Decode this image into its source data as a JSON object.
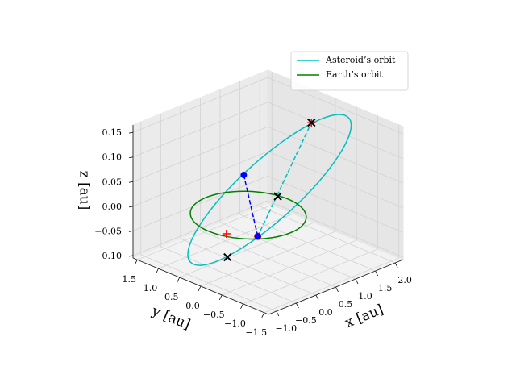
{
  "chart_data": {
    "type": "line3d",
    "xlabel": "x [au]",
    "ylabel": "y [au]",
    "zlabel": "z [au]",
    "xlim": [
      -1.2,
      2.2
    ],
    "ylim": [
      -1.6,
      1.6
    ],
    "zlim": [
      -0.105,
      0.165
    ],
    "xticks": [
      {
        "value": -1.0,
        "label": "−1.0"
      },
      {
        "value": -0.5,
        "label": "−0.5"
      },
      {
        "value": 0.0,
        "label": "0.0"
      },
      {
        "value": 0.5,
        "label": "0.5"
      },
      {
        "value": 1.0,
        "label": "1.0"
      },
      {
        "value": 1.5,
        "label": "1.5"
      },
      {
        "value": 2.0,
        "label": "2.0"
      }
    ],
    "yticks": [
      {
        "value": 1.5,
        "label": "1.5"
      },
      {
        "value": 1.0,
        "label": "1.0"
      },
      {
        "value": 0.5,
        "label": "0.5"
      },
      {
        "value": 0.0,
        "label": "0.0"
      },
      {
        "value": -0.5,
        "label": "−0.5"
      },
      {
        "value": -1.0,
        "label": "−1.0"
      },
      {
        "value": -1.5,
        "label": "−1.5"
      }
    ],
    "zticks": [
      {
        "value": -0.1,
        "label": "−0.10"
      },
      {
        "value": -0.05,
        "label": "−0.05"
      },
      {
        "value": 0.0,
        "label": "0.00"
      },
      {
        "value": 0.05,
        "label": "0.05"
      },
      {
        "value": 0.1,
        "label": "0.10"
      },
      {
        "value": 0.15,
        "label": "0.15"
      }
    ],
    "grid": true,
    "legend": "upper right",
    "series": [
      {
        "name": "Asteroid’s orbit",
        "color": "#00bfbf",
        "x": [
          2.0,
          1.728,
          1.26,
          0.667,
          0.04,
          -0.527,
          -0.946,
          -1.154,
          -1.12,
          -0.848,
          -0.38,
          0.213,
          0.84,
          1.407,
          1.826,
          2.034,
          2.0
        ],
        "y": [
          -0.5,
          -0.795,
          -0.981,
          -1.032,
          -0.94,
          -0.718,
          -0.401,
          -0.037,
          0.32,
          0.615,
          0.801,
          0.852,
          0.76,
          0.538,
          0.221,
          -0.143,
          -0.5
        ],
        "z": [
          0.15,
          0.142,
          0.118,
          0.082,
          0.04,
          -0.002,
          -0.038,
          -0.062,
          -0.07,
          -0.062,
          -0.038,
          -0.002,
          0.04,
          0.082,
          0.118,
          0.142,
          0.15
        ]
      },
      {
        "name": "Earth’s orbit",
        "color": "#008000",
        "x": [
          1,
          0.924,
          0.707,
          0.383,
          0,
          -0.383,
          -0.707,
          -0.924,
          -1,
          -0.924,
          -0.707,
          -0.383,
          0,
          0.383,
          0.707,
          0.924,
          1
        ],
        "y": [
          0,
          0.383,
          0.707,
          0.924,
          1,
          0.924,
          0.707,
          0.383,
          0,
          -0.383,
          -0.707,
          -0.924,
          -1,
          -0.924,
          -0.707,
          -0.383,
          0
        ],
        "z": [
          0,
          0,
          0,
          0,
          0,
          0,
          0,
          0,
          0,
          0,
          0,
          0,
          0,
          0,
          0,
          0,
          0
        ]
      },
      {
        "color": "#0000ff",
        "linestyle": "dashed",
        "x": [
          0.72,
          -0.53
        ],
        "y": [
          0.78,
          -0.72
        ],
        "z": [
          0.03,
          0.0
        ]
      },
      {
        "color": "#00bfbf",
        "linestyle": "dashed",
        "x": [
          -0.53,
          1.83
        ],
        "y": [
          -0.72,
          0.22
        ],
        "z": [
          0.0,
          0.12
        ]
      },
      {
        "color": "#ff0000",
        "marker": "o",
        "x": [
          -0.53
        ],
        "y": [
          -0.72
        ],
        "z": [
          0.0
        ]
      },
      {
        "color": "#0000ff",
        "marker": "o",
        "x": [
          0.72,
          -0.53
        ],
        "y": [
          0.78,
          -0.72
        ],
        "z": [
          0.03,
          0.0
        ]
      },
      {
        "color": "#ff0000",
        "marker": "+",
        "x": [
          -0.85,
          1.83
        ],
        "y": [
          -0.28,
          0.22
        ],
        "z": [
          0.0,
          0.12
        ]
      },
      {
        "color": "#000000",
        "marker": "x",
        "x": [
          -0.95,
          0.35,
          1.83
        ],
        "y": [
          -0.4,
          -0.37,
          0.22
        ],
        "z": [
          -0.04,
          0.04,
          0.12
        ]
      }
    ]
  }
}
